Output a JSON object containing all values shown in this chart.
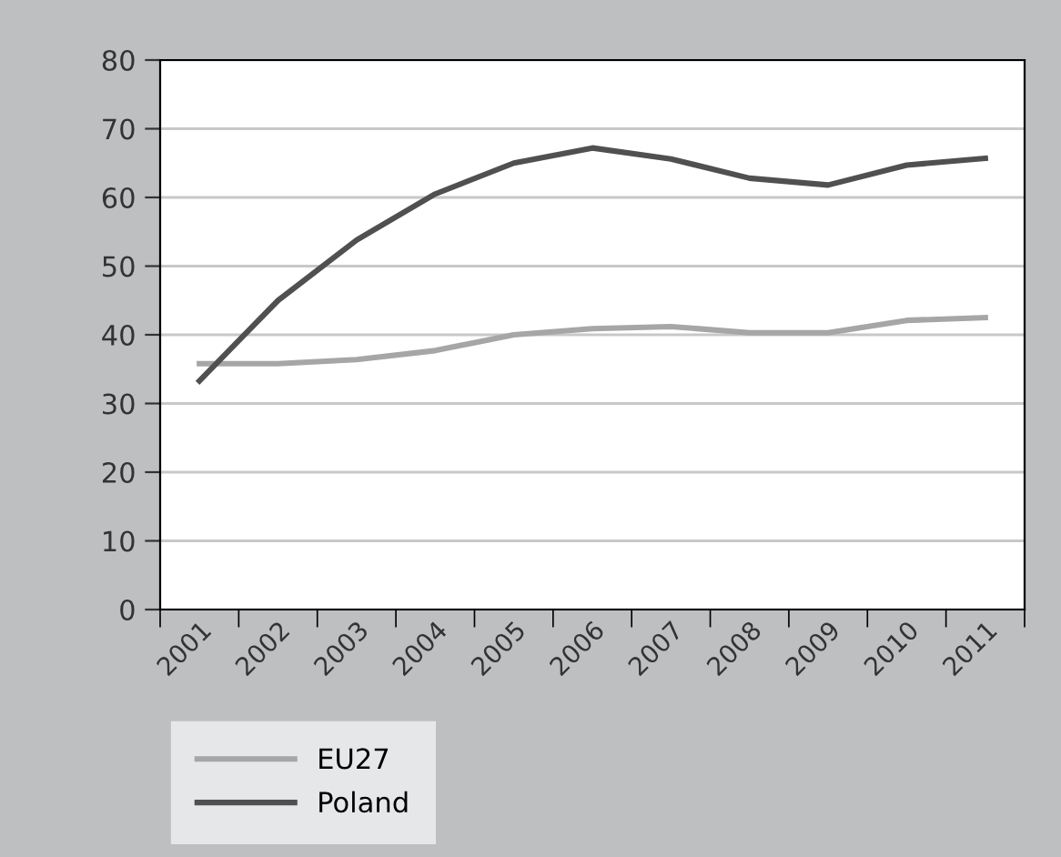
{
  "chart_data": {
    "type": "line",
    "categories": [
      "2001",
      "2002",
      "2003",
      "2004",
      "2005",
      "2006",
      "2007",
      "2008",
      "2009",
      "2010",
      "2011"
    ],
    "series": [
      {
        "name": "EU27",
        "color": "#a6a6a6",
        "values": [
          35.8,
          35.8,
          36.4,
          37.7,
          40.0,
          40.9,
          41.2,
          40.3,
          40.3,
          42.1,
          42.5
        ]
      },
      {
        "name": "Poland",
        "color": "#505050",
        "values": [
          33.3,
          45.0,
          53.8,
          60.5,
          65.0,
          67.2,
          65.6,
          62.8,
          61.8,
          64.7,
          65.7
        ]
      }
    ],
    "ylim": [
      0,
      80
    ],
    "yticks": [
      0,
      10,
      20,
      30,
      40,
      50,
      60,
      70,
      80
    ],
    "grid": "y",
    "legend": "bottom",
    "marker": "none",
    "line_style": "solid"
  }
}
